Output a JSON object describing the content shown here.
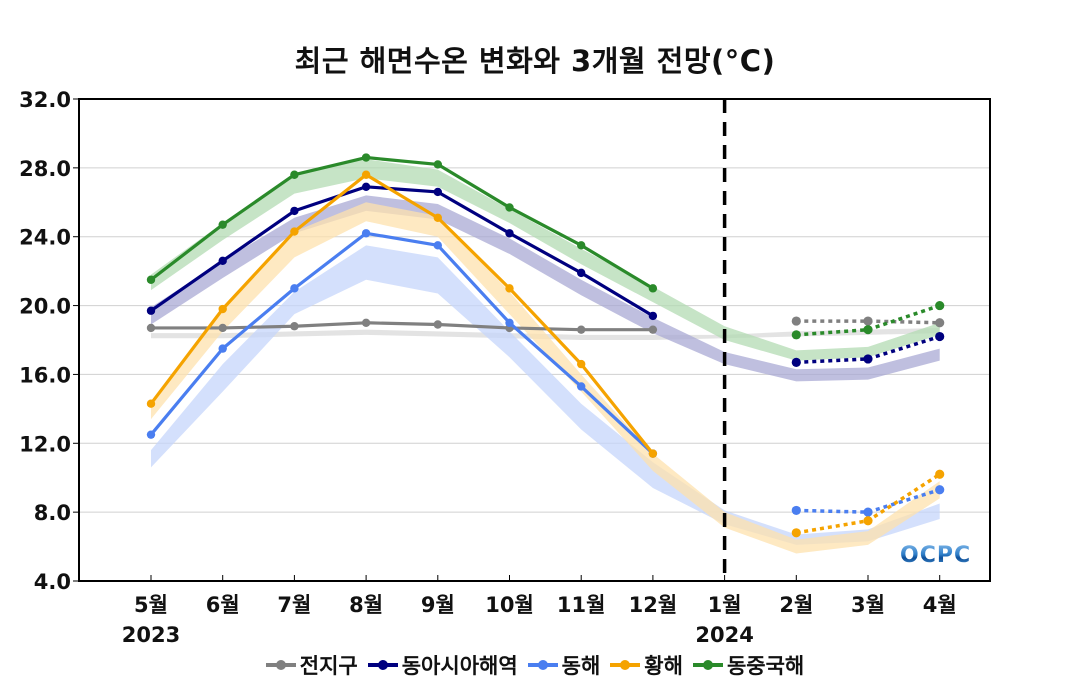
{
  "chart_data": {
    "type": "line",
    "title": "최근 해면수온 변화와 3개월 전망(°C)",
    "xlabel": "",
    "ylabel": "",
    "ylim": [
      4.0,
      32.0
    ],
    "yticks": [
      "4.0",
      "8.0",
      "12.0",
      "16.0",
      "20.0",
      "24.0",
      "28.0",
      "32.0"
    ],
    "grid": true,
    "categories": [
      "5월",
      "6월",
      "7월",
      "8월",
      "9월",
      "10월",
      "11월",
      "12월",
      "1월",
      "2월",
      "3월",
      "4월"
    ],
    "year_labels": [
      {
        "category": "5월",
        "label": "2023"
      },
      {
        "category": "1월",
        "label": "2024"
      }
    ],
    "divider": {
      "category": "1월",
      "style": "dashed"
    },
    "legend_position": "bottom",
    "watermark": "OCPC",
    "series": [
      {
        "name": "전지구",
        "color": "#808080",
        "band_color": "#d9d9d9",
        "observed": [
          18.7,
          18.7,
          18.8,
          19.0,
          18.9,
          18.7,
          18.6,
          18.6,
          null,
          null,
          null,
          null
        ],
        "forecast": [
          null,
          null,
          null,
          null,
          null,
          null,
          null,
          null,
          null,
          19.1,
          19.1,
          19.0
        ],
        "climatology_band": {
          "lower": [
            18.1,
            18.1,
            18.2,
            18.3,
            18.2,
            18.1,
            18.0,
            18.0,
            18.1,
            18.2,
            18.3,
            18.4
          ],
          "upper": [
            18.4,
            18.4,
            18.5,
            18.6,
            18.5,
            18.4,
            18.3,
            18.3,
            18.3,
            18.5,
            18.6,
            18.7
          ]
        }
      },
      {
        "name": "동아시아해역",
        "color": "#00007f",
        "band_color": "#a9a9d4",
        "observed": [
          19.7,
          22.6,
          25.5,
          26.9,
          26.6,
          24.2,
          21.9,
          19.4,
          null,
          null,
          null,
          null
        ],
        "forecast": [
          null,
          null,
          null,
          null,
          null,
          null,
          null,
          null,
          null,
          16.7,
          16.9,
          18.2
        ],
        "climatology_band": {
          "lower": [
            18.9,
            21.6,
            24.2,
            25.5,
            25.0,
            23.0,
            20.6,
            18.4,
            16.6,
            15.6,
            15.7,
            16.8
          ],
          "upper": [
            19.9,
            22.6,
            25.1,
            26.4,
            25.9,
            23.9,
            21.5,
            19.3,
            17.3,
            16.3,
            16.4,
            17.5
          ]
        }
      },
      {
        "name": "동해",
        "color": "#4a7ef0",
        "band_color": "#c6d5fb",
        "observed": [
          12.5,
          17.5,
          21.0,
          24.2,
          23.5,
          19.0,
          15.3,
          11.4,
          null,
          null,
          null,
          null
        ],
        "forecast": [
          null,
          null,
          null,
          null,
          null,
          null,
          null,
          null,
          null,
          8.1,
          8.0,
          9.3
        ],
        "climatology_band": {
          "lower": [
            10.6,
            15.0,
            19.5,
            21.5,
            20.7,
            17.0,
            12.8,
            9.4,
            7.3,
            6.1,
            6.3,
            7.6
          ],
          "upper": [
            11.6,
            16.6,
            20.8,
            23.5,
            22.8,
            18.5,
            14.3,
            10.9,
            8.1,
            6.7,
            7.0,
            8.5
          ]
        }
      },
      {
        "name": "황해",
        "color": "#f5a300",
        "band_color": "#fde2ae",
        "observed": [
          14.3,
          19.8,
          24.3,
          27.6,
          25.1,
          21.0,
          16.6,
          11.4,
          null,
          null,
          null,
          null
        ],
        "forecast": [
          null,
          null,
          null,
          null,
          null,
          null,
          null,
          null,
          null,
          6.8,
          7.5,
          10.2
        ],
        "climatology_band": {
          "lower": [
            13.4,
            18.5,
            22.8,
            24.9,
            24.0,
            19.5,
            15.0,
            10.4,
            7.1,
            5.6,
            6.1,
            8.8
          ],
          "upper": [
            14.4,
            19.7,
            24.3,
            26.0,
            25.2,
            20.8,
            16.0,
            11.4,
            8.0,
            6.4,
            6.9,
            9.8
          ]
        }
      },
      {
        "name": "동중국해",
        "color": "#2a8a2a",
        "band_color": "#b3dbb3",
        "observed": [
          21.5,
          24.7,
          27.6,
          28.6,
          28.2,
          25.7,
          23.5,
          21.0,
          null,
          null,
          null,
          null
        ],
        "forecast": [
          null,
          null,
          null,
          null,
          null,
          null,
          null,
          null,
          null,
          18.3,
          18.6,
          20.0
        ],
        "climatology_band": {
          "lower": [
            20.9,
            23.8,
            26.5,
            27.4,
            26.9,
            24.8,
            22.4,
            20.2,
            18.0,
            16.8,
            17.0,
            18.3
          ],
          "upper": [
            21.8,
            24.8,
            27.6,
            28.5,
            27.9,
            25.6,
            23.3,
            21.1,
            18.8,
            17.4,
            17.6,
            19.0
          ]
        }
      }
    ]
  }
}
